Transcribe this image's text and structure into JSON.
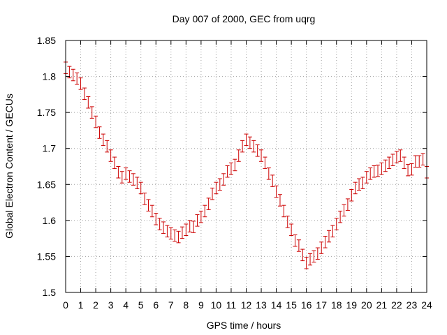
{
  "chart_data": {
    "type": "scatter",
    "title": "Day 007 of 2000, GEC from uqrg",
    "xlabel": "GPS time / hours",
    "ylabel": "Global Electron Content / GECUs",
    "xlim": [
      0,
      24
    ],
    "ylim": [
      1.5,
      1.85
    ],
    "xticks": [
      0,
      1,
      2,
      3,
      4,
      5,
      6,
      7,
      8,
      9,
      10,
      11,
      12,
      13,
      14,
      15,
      16,
      17,
      18,
      19,
      20,
      21,
      22,
      23,
      24
    ],
    "xtick_labels": [
      "0",
      "1",
      "2",
      "3",
      "4",
      "5",
      "6",
      "7",
      "8",
      "9",
      "10",
      "11",
      "12",
      "13",
      "14",
      "15",
      "16",
      "17",
      "18",
      "19",
      "20",
      "21",
      "22",
      "23",
      "24"
    ],
    "yticks": [
      1.5,
      1.55,
      1.6,
      1.65,
      1.7,
      1.75,
      1.8,
      1.85
    ],
    "ytick_labels": [
      "1.5",
      "1.55",
      "1.6",
      "1.65",
      "1.7",
      "1.75",
      "1.8",
      "1.85"
    ],
    "grid": true,
    "error_bars": true,
    "color": "#cc0000",
    "series": [
      {
        "name": "GEC",
        "x": [
          0,
          0.25,
          0.5,
          0.75,
          1,
          1.25,
          1.5,
          1.75,
          2,
          2.25,
          2.5,
          2.75,
          3,
          3.25,
          3.5,
          3.75,
          4,
          4.25,
          4.5,
          4.75,
          5,
          5.25,
          5.5,
          5.75,
          6,
          6.25,
          6.5,
          6.75,
          7,
          7.25,
          7.5,
          7.75,
          8,
          8.25,
          8.5,
          8.75,
          9,
          9.25,
          9.5,
          9.75,
          10,
          10.25,
          10.5,
          10.75,
          11,
          11.25,
          11.5,
          11.75,
          12,
          12.25,
          12.5,
          12.75,
          13,
          13.25,
          13.5,
          13.75,
          14,
          14.25,
          14.5,
          14.75,
          15,
          15.25,
          15.5,
          15.75,
          16,
          16.25,
          16.5,
          16.75,
          17,
          17.25,
          17.5,
          17.75,
          18,
          18.25,
          18.5,
          18.75,
          19,
          19.25,
          19.5,
          19.75,
          20,
          20.25,
          20.5,
          20.75,
          21,
          21.25,
          21.5,
          21.75,
          22,
          22.25,
          22.5,
          22.75,
          23,
          23.25,
          23.5,
          23.75,
          24
        ],
        "y": [
          1.812,
          1.806,
          1.802,
          1.797,
          1.79,
          1.776,
          1.764,
          1.75,
          1.737,
          1.722,
          1.712,
          1.703,
          1.69,
          1.68,
          1.667,
          1.66,
          1.665,
          1.661,
          1.657,
          1.652,
          1.645,
          1.63,
          1.621,
          1.613,
          1.602,
          1.595,
          1.59,
          1.585,
          1.582,
          1.579,
          1.577,
          1.583,
          1.587,
          1.592,
          1.591,
          1.6,
          1.605,
          1.613,
          1.623,
          1.637,
          1.645,
          1.65,
          1.657,
          1.668,
          1.672,
          1.677,
          1.69,
          1.703,
          1.712,
          1.708,
          1.703,
          1.697,
          1.69,
          1.68,
          1.665,
          1.655,
          1.64,
          1.628,
          1.613,
          1.598,
          1.587,
          1.572,
          1.565,
          1.552,
          1.541,
          1.546,
          1.55,
          1.554,
          1.562,
          1.57,
          1.578,
          1.585,
          1.595,
          1.605,
          1.614,
          1.622,
          1.635,
          1.645,
          1.65,
          1.652,
          1.66,
          1.665,
          1.668,
          1.669,
          1.672,
          1.676,
          1.68,
          1.684,
          1.688,
          1.69,
          1.68,
          1.67,
          1.671,
          1.682,
          1.682,
          1.685,
          1.667
        ],
        "err": [
          0.008,
          0.008,
          0.008,
          0.008,
          0.008,
          0.008,
          0.008,
          0.008,
          0.008,
          0.008,
          0.008,
          0.008,
          0.008,
          0.008,
          0.008,
          0.008,
          0.008,
          0.008,
          0.008,
          0.008,
          0.008,
          0.008,
          0.008,
          0.008,
          0.008,
          0.008,
          0.008,
          0.008,
          0.008,
          0.008,
          0.008,
          0.008,
          0.008,
          0.008,
          0.008,
          0.008,
          0.008,
          0.008,
          0.008,
          0.008,
          0.008,
          0.008,
          0.008,
          0.008,
          0.008,
          0.008,
          0.008,
          0.008,
          0.008,
          0.008,
          0.008,
          0.008,
          0.008,
          0.008,
          0.008,
          0.008,
          0.008,
          0.008,
          0.008,
          0.008,
          0.008,
          0.008,
          0.008,
          0.008,
          0.008,
          0.008,
          0.008,
          0.008,
          0.008,
          0.008,
          0.008,
          0.008,
          0.008,
          0.008,
          0.008,
          0.008,
          0.008,
          0.008,
          0.008,
          0.008,
          0.008,
          0.008,
          0.008,
          0.008,
          0.008,
          0.008,
          0.008,
          0.008,
          0.008,
          0.008,
          0.008,
          0.008,
          0.008,
          0.008,
          0.008,
          0.008,
          0.008
        ]
      }
    ]
  }
}
